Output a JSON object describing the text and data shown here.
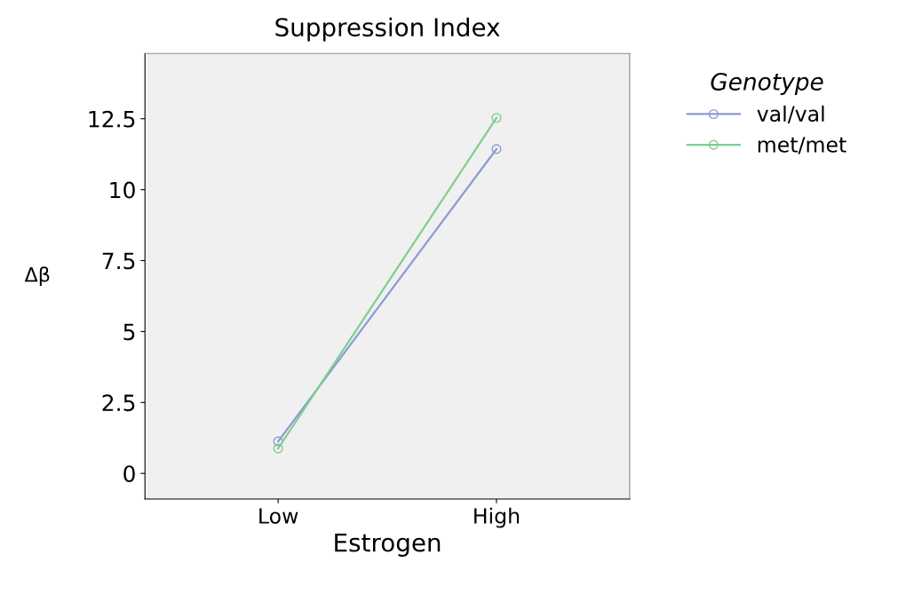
{
  "chart_data": {
    "type": "line",
    "title": "Suppression Index",
    "xlabel": "Estrogen",
    "ylabel": "Δβ",
    "legend_title": "Genotype",
    "categories": [
      "Low",
      "High"
    ],
    "series": [
      {
        "name": "val/val",
        "color": "#8c9ad6",
        "values": [
          1.13,
          11.43
        ]
      },
      {
        "name": "met/met",
        "color": "#7ccf8e",
        "values": [
          0.88,
          12.53
        ]
      }
    ],
    "ylim": [
      -0.9,
      14.8
    ],
    "yticks": [
      0,
      2.5,
      5,
      7.5,
      10,
      12.5
    ],
    "marker": "circle",
    "line_style": "solid",
    "legend": "right",
    "grid": false
  }
}
